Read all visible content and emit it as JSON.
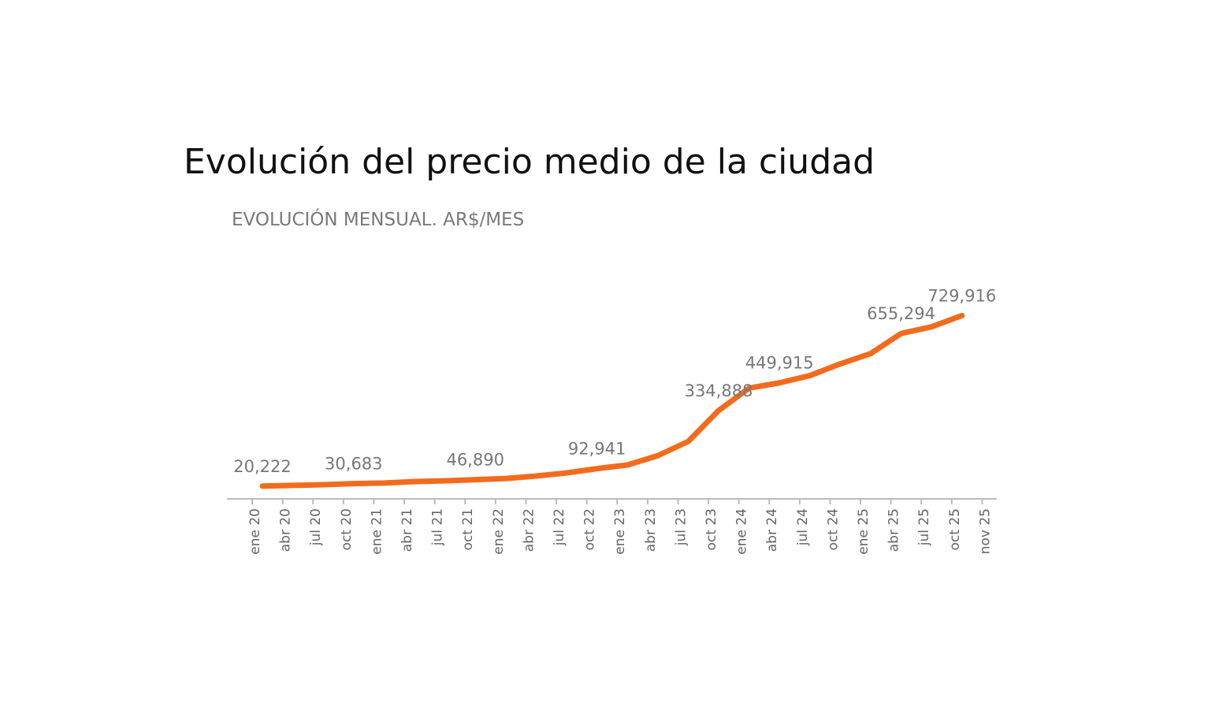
{
  "chart_data": {
    "type": "line",
    "title": "Evolución del precio medio de la ciudad",
    "subtitle": "EVOLUCIÓN MENSUAL. AR$/MES",
    "categories": [
      "ene 20",
      "abr 20",
      "jul 20",
      "oct 20",
      "ene 21",
      "abr 21",
      "jul 21",
      "oct 21",
      "ene 22",
      "abr 22",
      "jul 22",
      "oct 22",
      "ene 23",
      "abr 23",
      "jul 23",
      "oct 23",
      "ene 24",
      "abr 24",
      "jul 24",
      "oct 24",
      "ene 25",
      "abr 25",
      "jul 25",
      "oct 25",
      "nov 25"
    ],
    "series": [
      {
        "name": null,
        "color": "#f26b1d",
        "values": [
          20222,
          23000,
          26000,
          30683,
          33000,
          39000,
          42000,
          46890,
          52000,
          62000,
          75000,
          92941,
          108000,
          147000,
          206000,
          334888,
          428000,
          449915,
          480000,
          529000,
          572000,
          655294,
          683000,
          729916,
          null
        ],
        "value_labels": [
          "20,222",
          null,
          null,
          "30,683",
          null,
          null,
          null,
          "46,890",
          null,
          null,
          null,
          "92,941",
          null,
          null,
          null,
          "334,888",
          null,
          "449,915",
          null,
          null,
          null,
          "655,294",
          null,
          "729,916",
          null
        ]
      }
    ],
    "ylim": [
      -33000,
      800000
    ]
  }
}
